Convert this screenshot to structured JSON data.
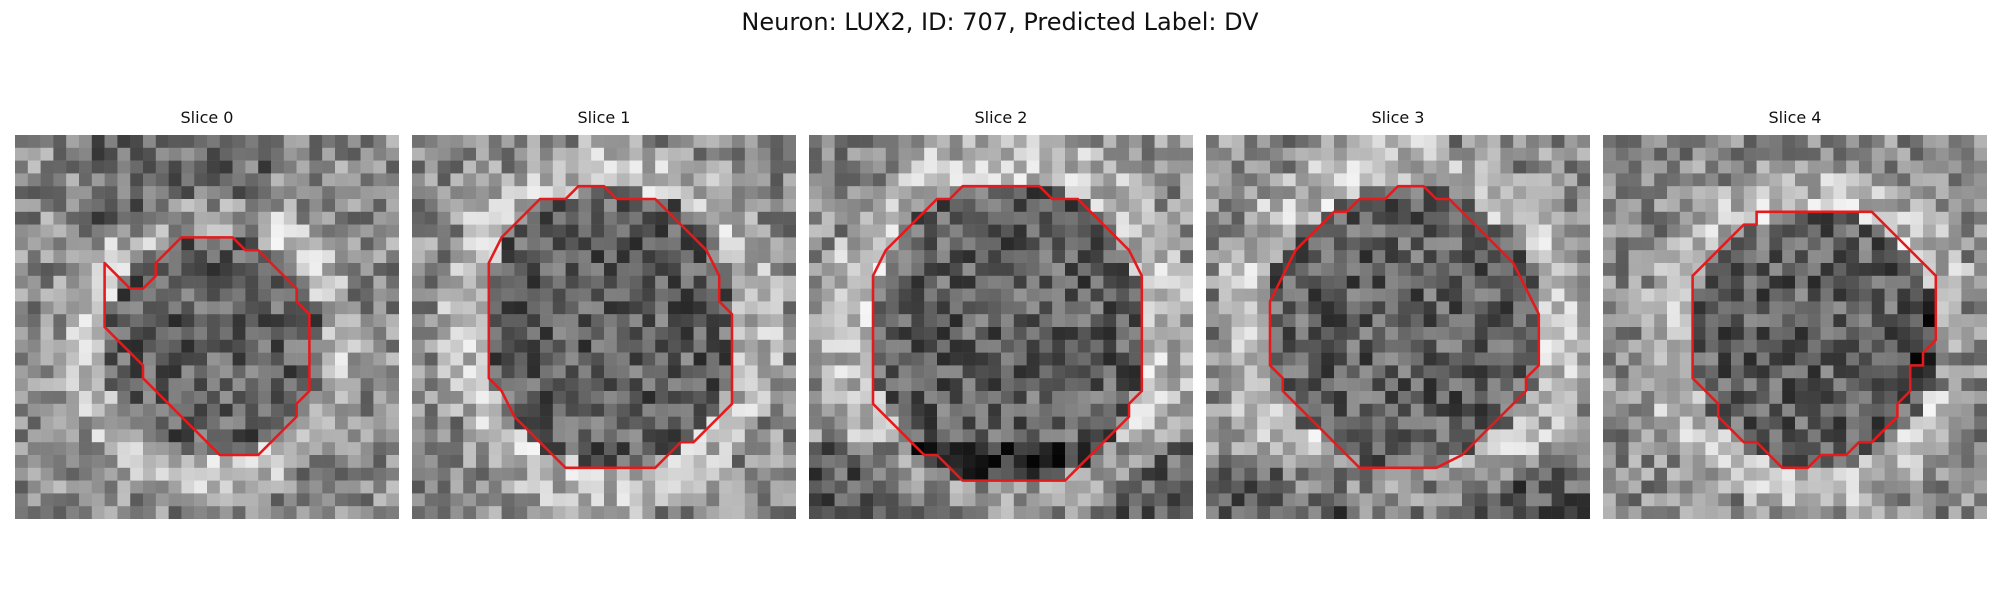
{
  "figure": {
    "title": "Neuron: LUX2, ID: 707, Predicted Label: DV"
  },
  "contour_color": "#e41a1c",
  "panels": [
    {
      "title": "Slice 0",
      "image": "grayscale microscopy crop with red neuron contour"
    },
    {
      "title": "Slice 1",
      "image": "grayscale microscopy crop with red neuron contour"
    },
    {
      "title": "Slice 2",
      "image": "grayscale microscopy crop with red neuron contour"
    },
    {
      "title": "Slice 3",
      "image": "grayscale microscopy crop with red neuron contour"
    },
    {
      "title": "Slice 4",
      "image": "grayscale microscopy crop with red neuron contour"
    }
  ]
}
